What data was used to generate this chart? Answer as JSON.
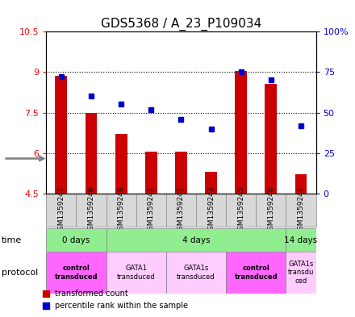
{
  "title": "GDS5368 / A_23_P109034",
  "samples": [
    "GSM1359247",
    "GSM1359248",
    "GSM1359240",
    "GSM1359241",
    "GSM1359242",
    "GSM1359243",
    "GSM1359245",
    "GSM1359246",
    "GSM1359244"
  ],
  "red_values": [
    8.85,
    7.5,
    6.7,
    6.05,
    6.05,
    5.3,
    9.05,
    8.55,
    5.2
  ],
  "blue_values": [
    72,
    60,
    55,
    52,
    46,
    40,
    75,
    70,
    42
  ],
  "ylim_left": [
    4.5,
    10.5
  ],
  "ylim_right": [
    0,
    100
  ],
  "yticks_left": [
    4.5,
    6.0,
    7.5,
    9.0,
    10.5
  ],
  "ytick_labels_left": [
    "4.5",
    "6",
    "7.5",
    "9",
    "10.5"
  ],
  "yticks_right": [
    0,
    25,
    50,
    75,
    100
  ],
  "ytick_labels_right": [
    "0",
    "25",
    "50",
    "75",
    "100%"
  ],
  "hlines": [
    6.0,
    7.5,
    9.0
  ],
  "time_groups": [
    {
      "label": "0 days",
      "start": 0,
      "end": 2,
      "color": "#90EE90"
    },
    {
      "label": "4 days",
      "start": 2,
      "end": 8,
      "color": "#90EE90"
    },
    {
      "label": "14 days",
      "start": 8,
      "end": 9,
      "color": "#90EE90"
    }
  ],
  "protocol_groups": [
    {
      "label": "control\ntransduced",
      "start": 0,
      "end": 2,
      "color": "#FF66FF",
      "bold": true
    },
    {
      "label": "GATA1\ntransduced",
      "start": 2,
      "end": 4,
      "color": "#FFCCFF",
      "bold": false
    },
    {
      "label": "GATA1s\ntransduced",
      "start": 4,
      "end": 6,
      "color": "#FFCCFF",
      "bold": false
    },
    {
      "label": "control\ntransduced",
      "start": 6,
      "end": 8,
      "color": "#FF66FF",
      "bold": true
    },
    {
      "label": "GATA1s\ntransdu\nced",
      "start": 8,
      "end": 9,
      "color": "#FFCCFF",
      "bold": false
    }
  ],
  "red_color": "#CC0000",
  "blue_color": "#0000CC",
  "bar_width": 0.4,
  "bar_bottom": 4.5,
  "bg_color": "#D8D8D8",
  "title_fontsize": 11,
  "tick_fontsize": 8
}
